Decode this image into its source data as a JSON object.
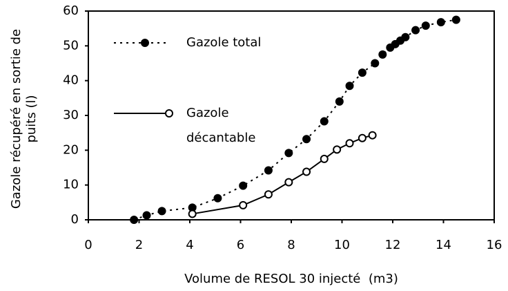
{
  "chart_data": {
    "type": "line",
    "xlabel": "Volume de RESOL 30 injecté  (m3)",
    "ylabel": "Gazole récupéré en sortie de puits (l)",
    "xlim": [
      0,
      16
    ],
    "xticks": [
      0,
      2,
      4,
      6,
      8,
      10,
      12,
      14,
      16
    ],
    "ylim": [
      0,
      60
    ],
    "yticks": [
      0,
      10,
      20,
      30,
      40,
      50,
      60
    ],
    "grid": false,
    "series": [
      {
        "name": "Gazole total",
        "color": "#000000",
        "line_style": "dotted",
        "marker": "filled",
        "x": [
          1.8,
          2.3,
          2.9,
          4.1,
          5.1,
          6.1,
          7.1,
          7.9,
          8.6,
          9.3,
          9.9,
          10.3,
          10.8,
          11.3,
          11.6,
          11.9,
          12.1,
          12.3,
          12.5,
          12.9,
          13.3,
          13.9,
          14.5
        ],
        "values": [
          0,
          1.3,
          2.5,
          3.5,
          6.2,
          9.8,
          14.2,
          19.2,
          23.2,
          28.3,
          34,
          38.5,
          42.3,
          45,
          47.5,
          49.5,
          50.5,
          51.5,
          52.5,
          54.5,
          55.8,
          56.8,
          57.5
        ]
      },
      {
        "name": "Gazole décantable",
        "color": "#000000",
        "line_style": "solid",
        "marker": "open",
        "x": [
          4.1,
          6.1,
          7.1,
          7.9,
          8.6,
          9.3,
          9.8,
          10.3,
          10.8,
          11.2
        ],
        "values": [
          1.7,
          4.2,
          7.3,
          10.8,
          13.8,
          17.5,
          20.2,
          22,
          23.5,
          24.3
        ]
      }
    ]
  }
}
